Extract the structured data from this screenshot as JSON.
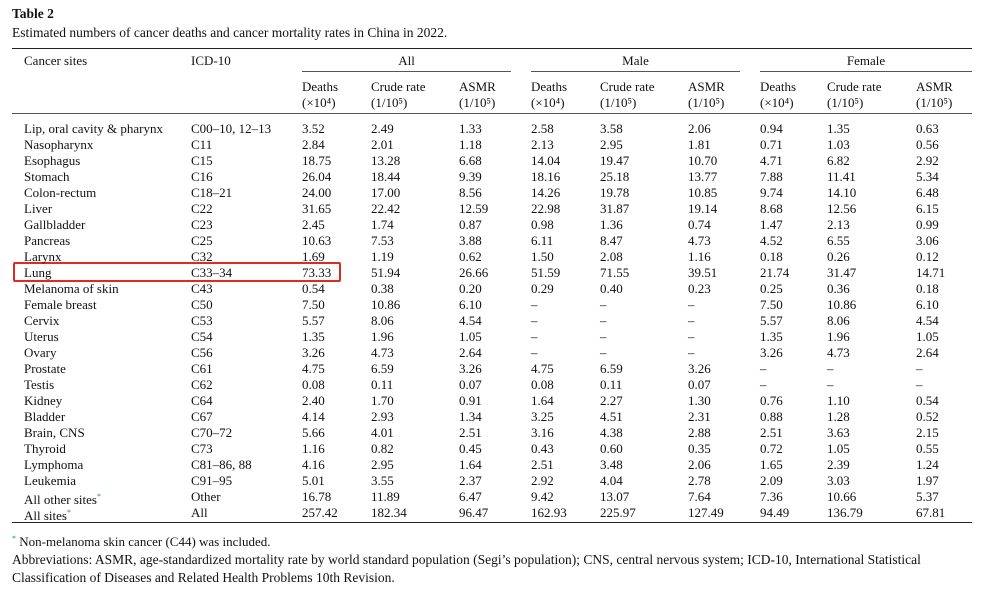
{
  "header": {
    "label": "Table 2",
    "title": "Estimated numbers of cancer deaths and cancer mortality rates in China in 2022."
  },
  "table": {
    "columns": {
      "site": "Cancer sites",
      "icd": "ICD-10"
    },
    "groups": [
      "All",
      "Male",
      "Female"
    ],
    "subheaders": [
      {
        "name": "Deaths",
        "unit": "(×10⁴)"
      },
      {
        "name": "Crude rate",
        "unit": "(1/10⁵)"
      },
      {
        "name": "ASMR",
        "unit": "(1/10⁵)"
      }
    ],
    "rows": [
      {
        "cells": [
          "Lip, oral cavity & pharynx",
          "C00–10, 12–13",
          "3.52",
          "2.49",
          "1.33",
          "2.58",
          "3.58",
          "2.06",
          "0.94",
          "1.35",
          "0.63"
        ]
      },
      {
        "cells": [
          "Nasopharynx",
          "C11",
          "2.84",
          "2.01",
          "1.18",
          "2.13",
          "2.95",
          "1.81",
          "0.71",
          "1.03",
          "0.56"
        ]
      },
      {
        "cells": [
          "Esophagus",
          "C15",
          "18.75",
          "13.28",
          "6.68",
          "14.04",
          "19.47",
          "10.70",
          "4.71",
          "6.82",
          "2.92"
        ]
      },
      {
        "cells": [
          "Stomach",
          "C16",
          "26.04",
          "18.44",
          "9.39",
          "18.16",
          "25.18",
          "13.77",
          "7.88",
          "11.41",
          "5.34"
        ]
      },
      {
        "cells": [
          "Colon-rectum",
          "C18–21",
          "24.00",
          "17.00",
          "8.56",
          "14.26",
          "19.78",
          "10.85",
          "9.74",
          "14.10",
          "6.48"
        ]
      },
      {
        "cells": [
          "Liver",
          "C22",
          "31.65",
          "22.42",
          "12.59",
          "22.98",
          "31.87",
          "19.14",
          "8.68",
          "12.56",
          "6.15"
        ]
      },
      {
        "cells": [
          "Gallbladder",
          "C23",
          "2.45",
          "1.74",
          "0.87",
          "0.98",
          "1.36",
          "0.74",
          "1.47",
          "2.13",
          "0.99"
        ]
      },
      {
        "cells": [
          "Pancreas",
          "C25",
          "10.63",
          "7.53",
          "3.88",
          "6.11",
          "8.47",
          "4.73",
          "4.52",
          "6.55",
          "3.06"
        ]
      },
      {
        "cells": [
          "Larynx",
          "C32",
          "1.69",
          "1.19",
          "0.62",
          "1.50",
          "2.08",
          "1.16",
          "0.18",
          "0.26",
          "0.12"
        ]
      },
      {
        "cells": [
          "Lung",
          "C33–34",
          "73.33",
          "51.94",
          "26.66",
          "51.59",
          "71.55",
          "39.51",
          "21.74",
          "31.47",
          "14.71"
        ]
      },
      {
        "cells": [
          "Melanoma of skin",
          "C43",
          "0.54",
          "0.38",
          "0.20",
          "0.29",
          "0.40",
          "0.23",
          "0.25",
          "0.36",
          "0.18"
        ]
      },
      {
        "cells": [
          "Female breast",
          "C50",
          "7.50",
          "10.86",
          "6.10",
          "–",
          "–",
          "–",
          "7.50",
          "10.86",
          "6.10"
        ]
      },
      {
        "cells": [
          "Cervix",
          "C53",
          "5.57",
          "8.06",
          "4.54",
          "–",
          "–",
          "–",
          "5.57",
          "8.06",
          "4.54"
        ]
      },
      {
        "cells": [
          "Uterus",
          "C54",
          "1.35",
          "1.96",
          "1.05",
          "–",
          "–",
          "–",
          "1.35",
          "1.96",
          "1.05"
        ]
      },
      {
        "cells": [
          "Ovary",
          "C56",
          "3.26",
          "4.73",
          "2.64",
          "–",
          "–",
          "–",
          "3.26",
          "4.73",
          "2.64"
        ]
      },
      {
        "cells": [
          "Prostate",
          "C61",
          "4.75",
          "6.59",
          "3.26",
          "4.75",
          "6.59",
          "3.26",
          "–",
          "–",
          "–"
        ]
      },
      {
        "cells": [
          "Testis",
          "C62",
          "0.08",
          "0.11",
          "0.07",
          "0.08",
          "0.11",
          "0.07",
          "–",
          "–",
          "–"
        ]
      },
      {
        "cells": [
          "Kidney",
          "C64",
          "2.40",
          "1.70",
          "0.91",
          "1.64",
          "2.27",
          "1.30",
          "0.76",
          "1.10",
          "0.54"
        ]
      },
      {
        "cells": [
          "Bladder",
          "C67",
          "4.14",
          "2.93",
          "1.34",
          "3.25",
          "4.51",
          "2.31",
          "0.88",
          "1.28",
          "0.52"
        ]
      },
      {
        "cells": [
          "Brain, CNS",
          "C70–72",
          "5.66",
          "4.01",
          "2.51",
          "3.16",
          "4.38",
          "2.88",
          "2.51",
          "3.63",
          "2.15"
        ]
      },
      {
        "cells": [
          "Thyroid",
          "C73",
          "1.16",
          "0.82",
          "0.45",
          "0.43",
          "0.60",
          "0.35",
          "0.72",
          "1.05",
          "0.55"
        ]
      },
      {
        "cells": [
          "Lymphoma",
          "C81–86, 88",
          "4.16",
          "2.95",
          "1.64",
          "2.51",
          "3.48",
          "2.06",
          "1.65",
          "2.39",
          "1.24"
        ]
      },
      {
        "cells": [
          "Leukemia",
          "C91–95",
          "5.01",
          "3.55",
          "2.37",
          "2.92",
          "4.04",
          "2.78",
          "2.09",
          "3.03",
          "1.97"
        ]
      },
      {
        "cells": [
          "All other sites",
          "Other",
          "16.78",
          "11.89",
          "6.47",
          "9.42",
          "13.07",
          "7.64",
          "7.36",
          "10.66",
          "5.37"
        ],
        "marker": "*"
      },
      {
        "cells": [
          "All sites",
          "All",
          "257.42",
          "182.34",
          "96.47",
          "162.93",
          "225.97",
          "127.49",
          "94.49",
          "136.79",
          "67.81"
        ],
        "marker": "*"
      }
    ]
  },
  "footnote": {
    "marker": "*",
    "text": "Non-melanoma skin cancer (C44) was included."
  },
  "abbreviations": "Abbreviations: ASMR, age-standardized mortality rate by world standard population (Segi’s population); CNS, central nervous system; ICD-10, International Statistical Classification of Diseases and Related Health Problems 10th Revision."
}
